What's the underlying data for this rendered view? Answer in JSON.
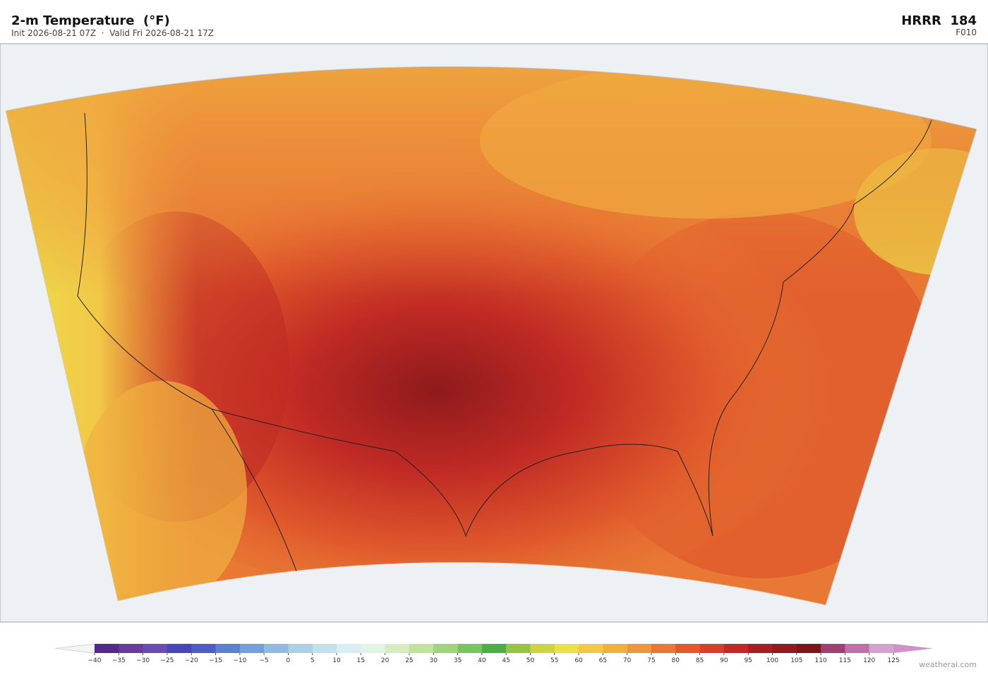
{
  "header": {
    "title": "2-m Temperature  (°F)",
    "subtitle": "Init 2026-08-21 07Z  ·  Valid Fri 2026-08-21 17Z",
    "model": "HRRR  184",
    "forecast_hour": "F010"
  },
  "colorbar": {
    "ticks": [
      {
        "value": -40,
        "label": "−40"
      },
      {
        "value": -35,
        "label": "−35"
      },
      {
        "value": -30,
        "label": "−30"
      },
      {
        "value": -25,
        "label": "−25"
      },
      {
        "value": -20,
        "label": "−20"
      },
      {
        "value": -15,
        "label": "−15"
      },
      {
        "value": -10,
        "label": "−10"
      },
      {
        "value": -5,
        "label": "−5"
      },
      0,
      5,
      10,
      15,
      20,
      25,
      30,
      35,
      40,
      45,
      50,
      55,
      60,
      65,
      70,
      75,
      80,
      85,
      90,
      95,
      100,
      105,
      110,
      115,
      120,
      125
    ],
    "colors": [
      "#54288c",
      "#6a3a9e",
      "#6a4bb3",
      "#4646b8",
      "#4a5ec5",
      "#5b82d0",
      "#72a0d8",
      "#8fbbe0",
      "#a9d2e8",
      "#c0e2ee",
      "#d8eef0",
      "#e2f4e4",
      "#d6ecc0",
      "#bfe29c",
      "#9ed47c",
      "#78c460",
      "#4cae48",
      "#96c444",
      "#cdd444",
      "#ebe048",
      "#f2c848",
      "#f0b040",
      "#ee963c",
      "#e87834",
      "#e05a2c",
      "#d44028",
      "#c02a24",
      "#a81e20",
      "#901a1c",
      "#7c1418",
      "#a04070",
      "#c070a8",
      "#d8a0cc"
    ]
  },
  "footer": {
    "credit": "weatherai.com"
  }
}
